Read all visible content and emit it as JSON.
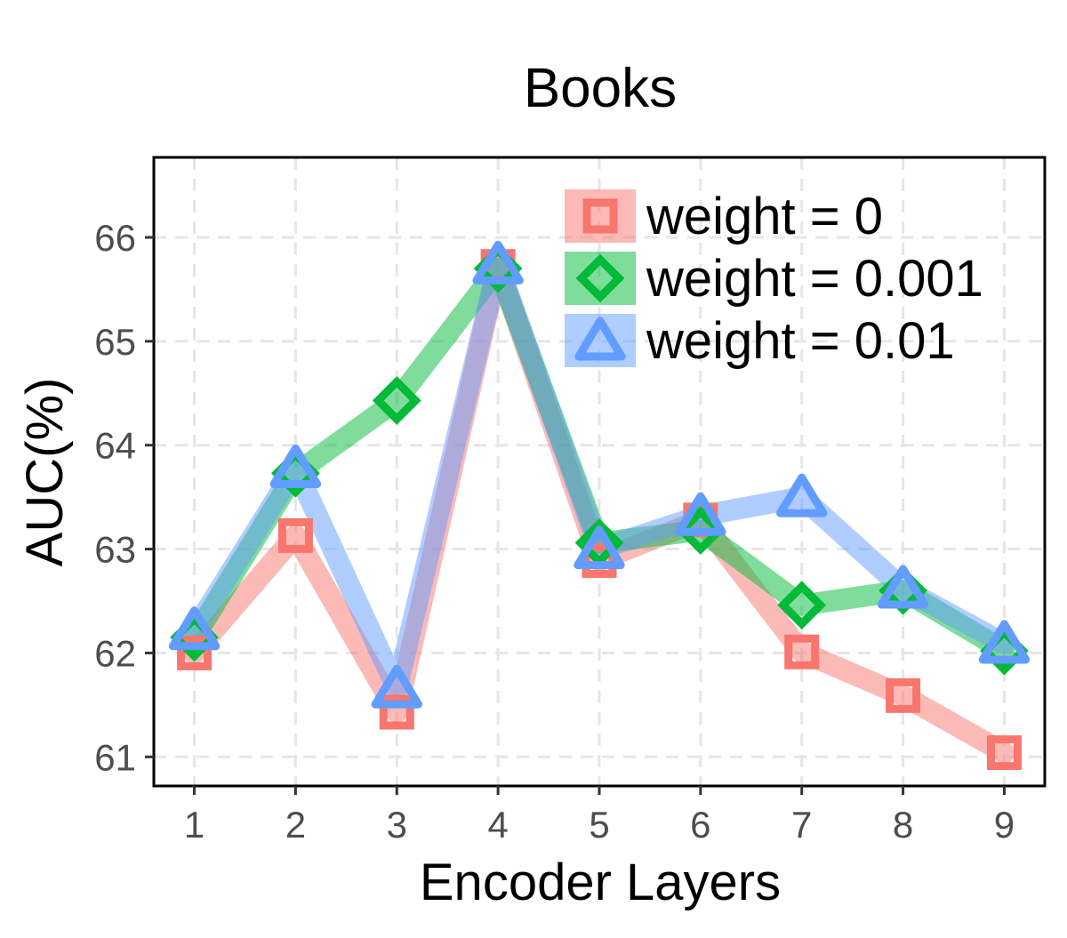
{
  "chart_data": {
    "type": "line",
    "title": "Books",
    "xlabel": "Encoder Layers",
    "ylabel": "AUC(%)",
    "x": [
      1,
      2,
      3,
      4,
      5,
      6,
      7,
      8,
      9
    ],
    "xlim": [
      0.6,
      9.4
    ],
    "ylim": [
      60.72,
      66.77
    ],
    "yticks": [
      61,
      62,
      63,
      64,
      65,
      66
    ],
    "grid": true,
    "grid_style": "dashed",
    "legend_position": "top-right",
    "series": [
      {
        "name": "weight = 0",
        "values": [
          62.0,
          63.13,
          61.43,
          65.72,
          62.89,
          63.28,
          62.01,
          61.59,
          61.04
        ],
        "color": "#F8766D",
        "marker": "square"
      },
      {
        "name": "weight = 0.001",
        "values": [
          62.15,
          63.73,
          64.43,
          65.7,
          63.06,
          63.18,
          62.46,
          62.6,
          62.02
        ],
        "color": "#00BA38",
        "marker": "diamond"
      },
      {
        "name": "weight = 0.01",
        "values": [
          62.22,
          63.78,
          61.66,
          65.74,
          63.0,
          63.32,
          63.5,
          62.62,
          62.09
        ],
        "color": "#619CFF",
        "marker": "triangle"
      }
    ]
  }
}
